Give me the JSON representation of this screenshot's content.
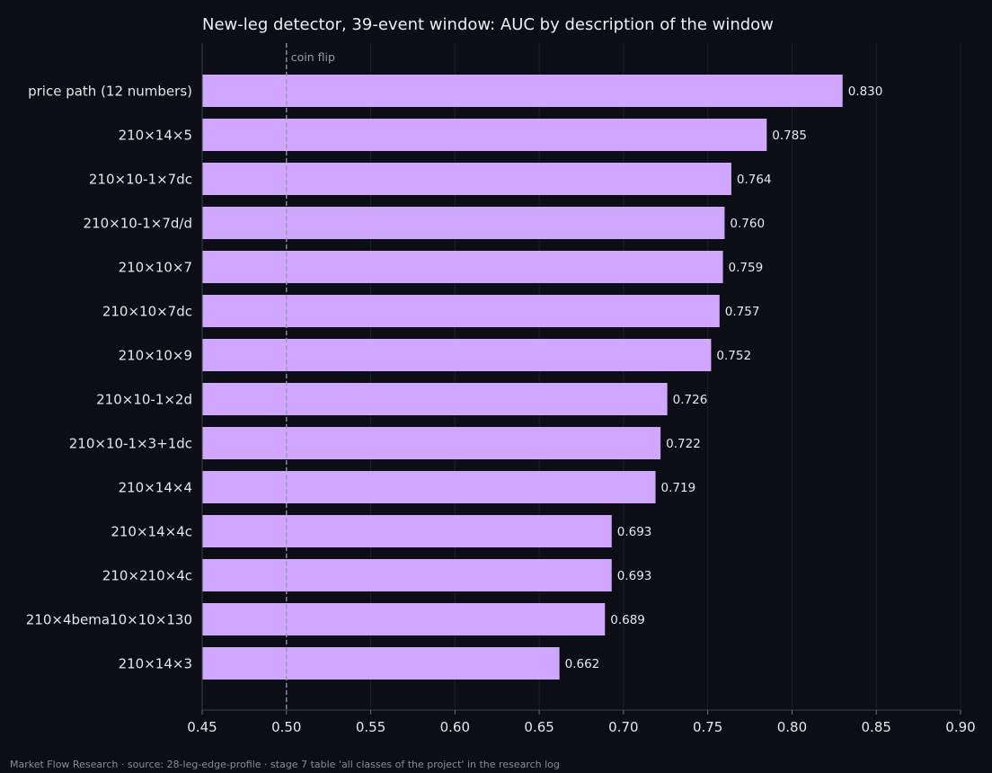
{
  "chart_data": {
    "type": "bar",
    "orientation": "horizontal",
    "title": "New-leg detector, 39-event window: AUC by description of the window",
    "xlabel": "",
    "ylabel": "",
    "categories": [
      "price path (12 numbers)",
      "210×14×5",
      "210×10-1×7dc",
      "210×10-1×7d/d",
      "210×10×7",
      "210×10×7dc",
      "210×10×9",
      "210×10-1×2d",
      "210×10-1×3+1dc",
      "210×14×4",
      "210×14×4c",
      "210×210×4c",
      "210×4bema10×10×130",
      "210×14×3"
    ],
    "values": [
      0.83,
      0.785,
      0.764,
      0.76,
      0.759,
      0.757,
      0.752,
      0.726,
      0.722,
      0.719,
      0.693,
      0.693,
      0.689,
      0.662
    ],
    "value_labels": [
      "0.830",
      "0.785",
      "0.764",
      "0.760",
      "0.759",
      "0.757",
      "0.752",
      "0.726",
      "0.722",
      "0.719",
      "0.693",
      "0.693",
      "0.689",
      "0.662"
    ],
    "xlim": [
      0.45,
      0.9
    ],
    "xticks": [
      0.45,
      0.5,
      0.55,
      0.6,
      0.65,
      0.7,
      0.75,
      0.8,
      0.85,
      0.9
    ],
    "xtick_labels": [
      "0.45",
      "0.50",
      "0.55",
      "0.60",
      "0.65",
      "0.70",
      "0.75",
      "0.80",
      "0.85",
      "0.90"
    ],
    "reference_line": {
      "x": 0.5,
      "label": "coin flip"
    },
    "grid": "vertical",
    "legend": "none",
    "colors": {
      "bar": "#d0a6ff",
      "background": "#0c0e15",
      "text": "#e8e8ee",
      "grid": "#1c1f29",
      "reference": "#9a9aa6"
    }
  },
  "footer": "Market Flow Research · source: 28-leg-edge-profile · stage 7 table 'all classes of the project' in the research log"
}
